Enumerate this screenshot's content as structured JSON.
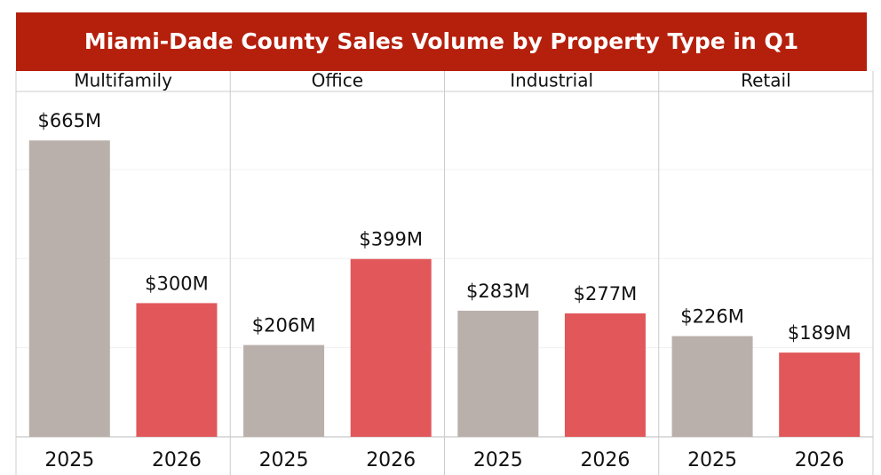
{
  "chart_data": {
    "type": "bar",
    "title": "Miami-Dade  County Sales Volume by Property Type  in Q1",
    "panels": [
      "Multifamily",
      "Office",
      "Industrial",
      "Retail"
    ],
    "series": [
      {
        "name": "2025",
        "color": "#bab0ab",
        "values": [
          665,
          206,
          283,
          226
        ],
        "value_labels": [
          "$665M",
          "$206M",
          "$283M",
          "$226M"
        ]
      },
      {
        "name": "2026",
        "color": "#e1575a",
        "values": [
          300,
          399,
          277,
          189
        ],
        "value_labels": [
          "$300M",
          "$399M",
          "$277M",
          "$189M"
        ]
      }
    ],
    "ylim": [
      0,
      775
    ],
    "yticks": [
      0,
      200,
      400,
      600
    ],
    "grid": true,
    "title_color": "#b5200d"
  }
}
